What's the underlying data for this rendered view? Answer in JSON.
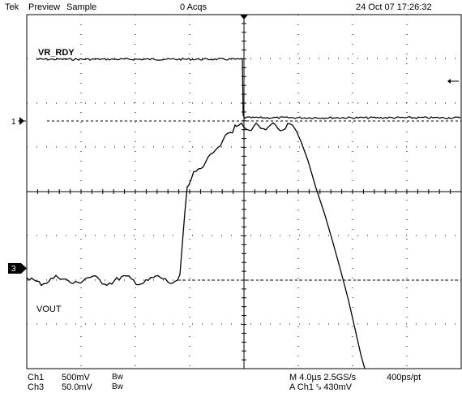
{
  "status_bar": {
    "brand": "Tek",
    "mode": "Preview",
    "acquisition": "Sample",
    "acq_count": "0 Acqs",
    "timestamp": "24 Oct 07 17:26:32"
  },
  "trace_labels": {
    "upper": "VR_RDY",
    "lower": "VOUT"
  },
  "markers": {
    "ch1": "1",
    "ch3": "3"
  },
  "readouts": {
    "ch1_label": "Ch1",
    "ch1_scale": "500mV",
    "ch1_bw": "Bw",
    "ch3_label": "Ch3",
    "ch3_scale": "50.0mV",
    "ch3_bw": "Bw",
    "timebase": "M 4.0µs 2.5GS/s",
    "record": "400ps/pt",
    "trigger": "A  Ch1  ⤥  430mV"
  },
  "colors": {
    "trace": "#000000",
    "grid": "#000000",
    "background": "#ffffff"
  }
}
